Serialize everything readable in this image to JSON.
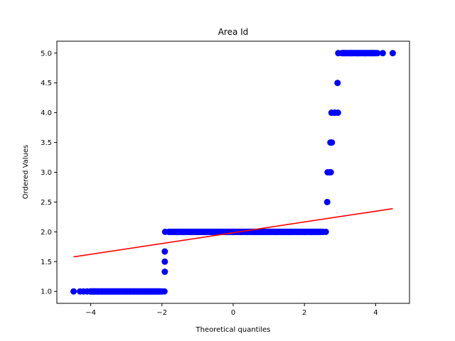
{
  "chart_data": {
    "type": "scatter",
    "title": "Area Id",
    "xlabel": "Theoretical quantiles",
    "ylabel": "Ordered Values",
    "xlim": [
      -4.95,
      4.95
    ],
    "ylim": [
      0.8,
      5.2
    ],
    "x_ticks": [
      {
        "value": -4,
        "label": "−4"
      },
      {
        "value": -2,
        "label": "−2"
      },
      {
        "value": 0,
        "label": "0"
      },
      {
        "value": 2,
        "label": "2"
      },
      {
        "value": 4,
        "label": "4"
      }
    ],
    "y_ticks": [
      {
        "value": 1.0,
        "label": "1.0"
      },
      {
        "value": 1.5,
        "label": "1.5"
      },
      {
        "value": 2.0,
        "label": "2.0"
      },
      {
        "value": 2.5,
        "label": "2.5"
      },
      {
        "value": 3.0,
        "label": "3.0"
      },
      {
        "value": 3.5,
        "label": "3.5"
      },
      {
        "value": 4.0,
        "label": "4.0"
      },
      {
        "value": 4.5,
        "label": "4.5"
      },
      {
        "value": 5.0,
        "label": "5.0"
      }
    ],
    "point_color": "#0000ff",
    "line_color": "#ff0000",
    "grid": false,
    "points": [
      {
        "x": -4.48,
        "y": 1.0
      },
      {
        "x": -4.3,
        "y": 1.0
      },
      {
        "x": -4.2,
        "y": 1.0
      },
      {
        "x": -4.1,
        "y": 1.0
      },
      {
        "x": -4.0,
        "y": 1.0
      },
      {
        "x": -3.9,
        "y": 1.0
      },
      {
        "x": -3.8,
        "y": 1.0
      },
      {
        "x": -3.7,
        "y": 1.0
      },
      {
        "x": -3.6,
        "y": 1.0
      },
      {
        "x": -3.5,
        "y": 1.0
      },
      {
        "x": -3.4,
        "y": 1.0
      },
      {
        "x": -3.3,
        "y": 1.0
      },
      {
        "x": -3.2,
        "y": 1.0
      },
      {
        "x": -3.1,
        "y": 1.0
      },
      {
        "x": -3.0,
        "y": 1.0
      },
      {
        "x": -2.9,
        "y": 1.0
      },
      {
        "x": -2.8,
        "y": 1.0
      },
      {
        "x": -2.7,
        "y": 1.0
      },
      {
        "x": -2.6,
        "y": 1.0
      },
      {
        "x": -2.5,
        "y": 1.0
      },
      {
        "x": -2.4,
        "y": 1.0
      },
      {
        "x": -2.3,
        "y": 1.0
      },
      {
        "x": -2.2,
        "y": 1.0
      },
      {
        "x": -2.1,
        "y": 1.0
      },
      {
        "x": -2.0,
        "y": 1.0
      },
      {
        "x": -1.93,
        "y": 1.0
      },
      {
        "x": -1.92,
        "y": 1.33
      },
      {
        "x": -1.92,
        "y": 1.5
      },
      {
        "x": -1.92,
        "y": 1.67
      },
      {
        "x": -1.91,
        "y": 2.0
      },
      {
        "x": -1.8,
        "y": 2.0
      },
      {
        "x": -1.6,
        "y": 2.0
      },
      {
        "x": -1.4,
        "y": 2.0
      },
      {
        "x": -1.2,
        "y": 2.0
      },
      {
        "x": -1.0,
        "y": 2.0
      },
      {
        "x": -0.8,
        "y": 2.0
      },
      {
        "x": -0.6,
        "y": 2.0
      },
      {
        "x": -0.4,
        "y": 2.0
      },
      {
        "x": -0.2,
        "y": 2.0
      },
      {
        "x": 0.0,
        "y": 2.0
      },
      {
        "x": 0.2,
        "y": 2.0
      },
      {
        "x": 0.4,
        "y": 2.0
      },
      {
        "x": 0.6,
        "y": 2.0
      },
      {
        "x": 0.8,
        "y": 2.0
      },
      {
        "x": 1.0,
        "y": 2.0
      },
      {
        "x": 1.2,
        "y": 2.0
      },
      {
        "x": 1.4,
        "y": 2.0
      },
      {
        "x": 1.6,
        "y": 2.0
      },
      {
        "x": 1.8,
        "y": 2.0
      },
      {
        "x": 2.0,
        "y": 2.0
      },
      {
        "x": 2.2,
        "y": 2.0
      },
      {
        "x": 2.4,
        "y": 2.0
      },
      {
        "x": 2.6,
        "y": 2.0
      },
      {
        "x": 2.64,
        "y": 2.5
      },
      {
        "x": 2.65,
        "y": 3.0
      },
      {
        "x": 2.7,
        "y": 3.0
      },
      {
        "x": 2.74,
        "y": 3.0
      },
      {
        "x": 2.73,
        "y": 3.5
      },
      {
        "x": 2.77,
        "y": 3.5
      },
      {
        "x": 2.76,
        "y": 4.0
      },
      {
        "x": 2.85,
        "y": 4.0
      },
      {
        "x": 2.94,
        "y": 4.0
      },
      {
        "x": 2.93,
        "y": 4.5
      },
      {
        "x": 2.95,
        "y": 5.0
      },
      {
        "x": 3.1,
        "y": 5.0
      },
      {
        "x": 3.3,
        "y": 5.0
      },
      {
        "x": 3.5,
        "y": 5.0
      },
      {
        "x": 3.7,
        "y": 5.0
      },
      {
        "x": 3.9,
        "y": 5.0
      },
      {
        "x": 4.05,
        "y": 5.0
      },
      {
        "x": 4.2,
        "y": 5.0
      },
      {
        "x": 4.48,
        "y": 5.0
      }
    ],
    "dense_segments": [
      {
        "x_start": -4.1,
        "x_end": -1.95,
        "y": 1.0
      },
      {
        "x_start": -1.9,
        "x_end": 2.62,
        "y": 2.0
      },
      {
        "x_start": 2.66,
        "x_end": 2.74,
        "y": 3.0
      },
      {
        "x_start": 2.74,
        "x_end": 2.78,
        "y": 3.5
      },
      {
        "x_start": 2.77,
        "x_end": 2.93,
        "y": 4.0
      },
      {
        "x_start": 2.96,
        "x_end": 4.1,
        "y": 5.0
      }
    ],
    "fit_line": {
      "x": [
        -4.48,
        4.48
      ],
      "y": [
        1.58,
        2.39
      ]
    }
  }
}
